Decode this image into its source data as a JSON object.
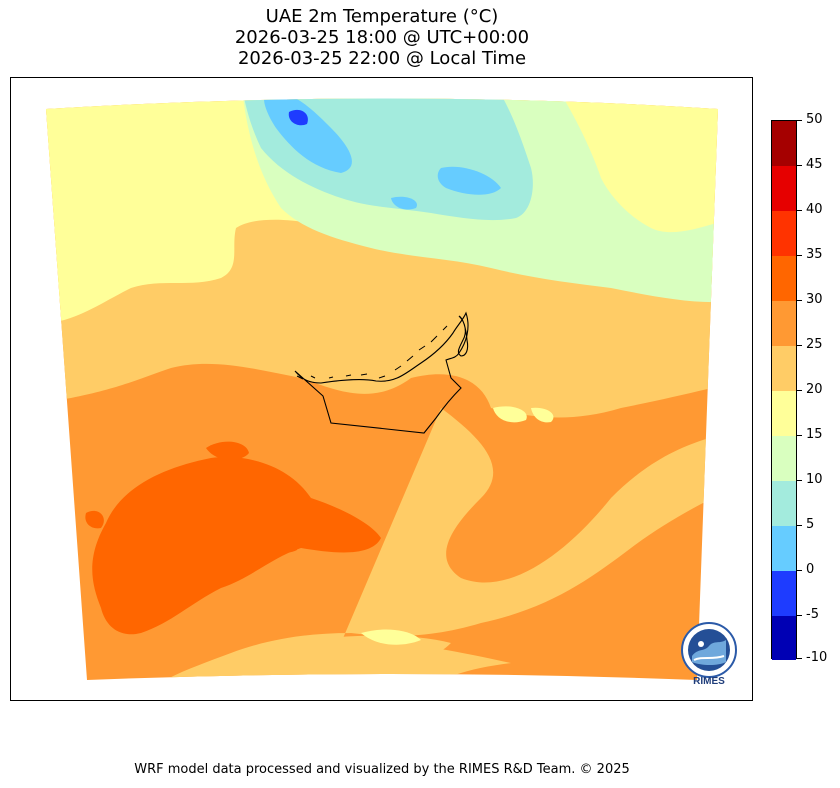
{
  "title": {
    "line1": "UAE 2m Temperature (°C)",
    "line2": "2026-03-25 18:00 @ UTC+00:00",
    "line3": "2026-03-25 22:00 @ Local Time"
  },
  "map": {
    "region": "UAE",
    "variable": "2m Temperature",
    "unit": "°C"
  },
  "colorbar": {
    "tick_labels": [
      "50",
      "45",
      "40",
      "35",
      "30",
      "25",
      "20",
      "15",
      "10",
      "5",
      "0",
      "-5",
      "-10"
    ],
    "bins": [
      {
        "range": "45–50",
        "color": "#a50000"
      },
      {
        "range": "40–45",
        "color": "#e60000"
      },
      {
        "range": "35–40",
        "color": "#ff3300"
      },
      {
        "range": "30–35",
        "color": "#ff6600"
      },
      {
        "range": "25–30",
        "color": "#ff9933"
      },
      {
        "range": "20–25",
        "color": "#ffcc66"
      },
      {
        "range": "15–20",
        "color": "#ffff99"
      },
      {
        "range": "10–15",
        "color": "#d9ffbf"
      },
      {
        "range": "5–10",
        "color": "#a3ebdd"
      },
      {
        "range": "0–5",
        "color": "#66ccff"
      },
      {
        "range": "-5–0",
        "color": "#1e3cff"
      },
      {
        "range": "-10–-5",
        "color": "#0000b4"
      }
    ]
  },
  "logo": {
    "icon": "rimes-logo",
    "text": "RIMES"
  },
  "footer": {
    "text": "WRF model data processed and visualized by the RIMES R&D Team. © 2025"
  }
}
